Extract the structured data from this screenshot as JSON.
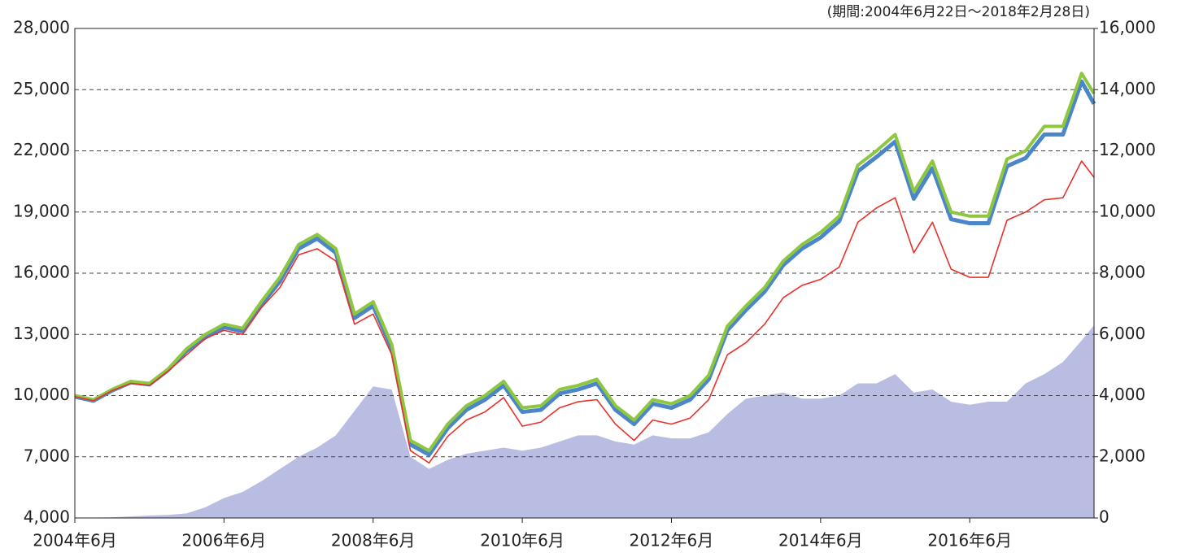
{
  "chart_data": {
    "type": "line",
    "annotation": "(期間:2004年6月22日～2018年2月28日)",
    "x": [
      "2004-06",
      "2004-09",
      "2004-12",
      "2005-03",
      "2005-06",
      "2005-09",
      "2005-12",
      "2006-03",
      "2006-06",
      "2006-09",
      "2006-12",
      "2007-03",
      "2007-06",
      "2007-09",
      "2007-12",
      "2008-03",
      "2008-06",
      "2008-09",
      "2008-12",
      "2009-03",
      "2009-06",
      "2009-09",
      "2009-12",
      "2010-03",
      "2010-06",
      "2010-09",
      "2010-12",
      "2011-03",
      "2011-06",
      "2011-09",
      "2011-12",
      "2012-03",
      "2012-06",
      "2012-09",
      "2012-12",
      "2013-03",
      "2013-06",
      "2013-09",
      "2013-12",
      "2014-03",
      "2014-06",
      "2014-09",
      "2014-12",
      "2015-03",
      "2015-06",
      "2015-09",
      "2015-12",
      "2016-03",
      "2016-06",
      "2016-09",
      "2016-12",
      "2017-03",
      "2017-06",
      "2017-09",
      "2017-12",
      "2018-02"
    ],
    "series": [
      {
        "type": "area",
        "axis": "y2",
        "color": "#b9bde1",
        "values": [
          0,
          10,
          20,
          50,
          80,
          100,
          150,
          350,
          650,
          850,
          1200,
          1600,
          2000,
          2300,
          2700,
          3500,
          4300,
          4200,
          2000,
          1600,
          1900,
          2100,
          2200,
          2300,
          2200,
          2300,
          2500,
          2700,
          2700,
          2500,
          2400,
          2700,
          2600,
          2600,
          2800,
          3400,
          3900,
          4000,
          4100,
          3900,
          3900,
          4000,
          4400,
          4400,
          4700,
          4100,
          4200,
          3800,
          3700,
          3800,
          3800,
          4400,
          4700,
          5100,
          5800,
          6300
        ]
      },
      {
        "type": "line",
        "color": "#4a86c8",
        "width": 5,
        "values": [
          9950,
          9750,
          10250,
          10650,
          10550,
          11250,
          12200,
          12850,
          13350,
          13150,
          14450,
          15600,
          17200,
          17700,
          17000,
          13800,
          14400,
          12300,
          7600,
          7100,
          8400,
          9300,
          9800,
          10500,
          9200,
          9300,
          10100,
          10300,
          10600,
          9300,
          8600,
          9600,
          9400,
          9800,
          10800,
          13200,
          14200,
          15100,
          16400,
          17200,
          17750,
          18550,
          21000,
          21700,
          22450,
          19650,
          21150,
          18650,
          18450,
          18450,
          21250,
          21650,
          22800,
          22800,
          25400,
          24300
        ]
      },
      {
        "type": "line",
        "color": "#8dc63f",
        "width": 4,
        "values": [
          10000,
          9800,
          10300,
          10700,
          10600,
          11300,
          12300,
          13000,
          13500,
          13300,
          14600,
          15800,
          17400,
          17900,
          17200,
          14000,
          14600,
          12500,
          7800,
          7300,
          8600,
          9500,
          10000,
          10700,
          9400,
          9500,
          10300,
          10500,
          10800,
          9500,
          8800,
          9800,
          9600,
          10000,
          11000,
          13400,
          14400,
          15300,
          16600,
          17400,
          18000,
          18800,
          21300,
          22000,
          22800,
          20000,
          21500,
          19000,
          18800,
          18800,
          21600,
          22000,
          23200,
          23200,
          25800,
          24800
        ]
      },
      {
        "type": "line",
        "color": "#e8312a",
        "width": 1.6,
        "values": [
          9950,
          9750,
          10250,
          10600,
          10500,
          11200,
          12000,
          12800,
          13200,
          13000,
          14300,
          15300,
          16900,
          17200,
          16600,
          13500,
          14000,
          12000,
          7300,
          6700,
          8000,
          8800,
          9200,
          9900,
          8500,
          8700,
          9400,
          9700,
          9800,
          8600,
          7800,
          8800,
          8600,
          8900,
          9800,
          12000,
          12600,
          13500,
          14800,
          15400,
          15700,
          16300,
          18500,
          19200,
          19700,
          17000,
          18500,
          16200,
          15800,
          15800,
          18600,
          19000,
          19600,
          19700,
          21500,
          20700
        ]
      }
    ],
    "xlim": [
      "2004-06",
      "2018-02"
    ],
    "xticks": [
      {
        "value": "2004-06",
        "label": "2004年6月"
      },
      {
        "value": "2006-06",
        "label": "2006年6月"
      },
      {
        "value": "2008-06",
        "label": "2008年6月"
      },
      {
        "value": "2010-06",
        "label": "2010年6月"
      },
      {
        "value": "2012-06",
        "label": "2012年6月"
      },
      {
        "value": "2014-06",
        "label": "2014年6月"
      },
      {
        "value": "2016-06",
        "label": "2016年6月"
      }
    ],
    "ylim": [
      4000,
      28000
    ],
    "yticks": [
      {
        "value": 4000,
        "label": "4,000"
      },
      {
        "value": 7000,
        "label": "7,000"
      },
      {
        "value": 10000,
        "label": "10,000"
      },
      {
        "value": 13000,
        "label": "13,000"
      },
      {
        "value": 16000,
        "label": "16,000"
      },
      {
        "value": 19000,
        "label": "19,000"
      },
      {
        "value": 22000,
        "label": "22,000"
      },
      {
        "value": 25000,
        "label": "25,000"
      },
      {
        "value": 28000,
        "label": "28,000"
      }
    ],
    "y2lim": [
      0,
      16000
    ],
    "y2ticks": [
      0,
      {
        "value": 2000,
        "label": "2,000"
      },
      {
        "value": 4000,
        "label": "4,000"
      },
      {
        "value": 6000,
        "label": "6,000"
      },
      {
        "value": 8000,
        "label": "8,000"
      },
      {
        "value": 10000,
        "label": "10,000"
      },
      {
        "value": 12000,
        "label": "12,000"
      },
      {
        "value": 14000,
        "label": "14,000"
      },
      {
        "value": 16000,
        "label": "16,000"
      }
    ],
    "grid": true
  }
}
